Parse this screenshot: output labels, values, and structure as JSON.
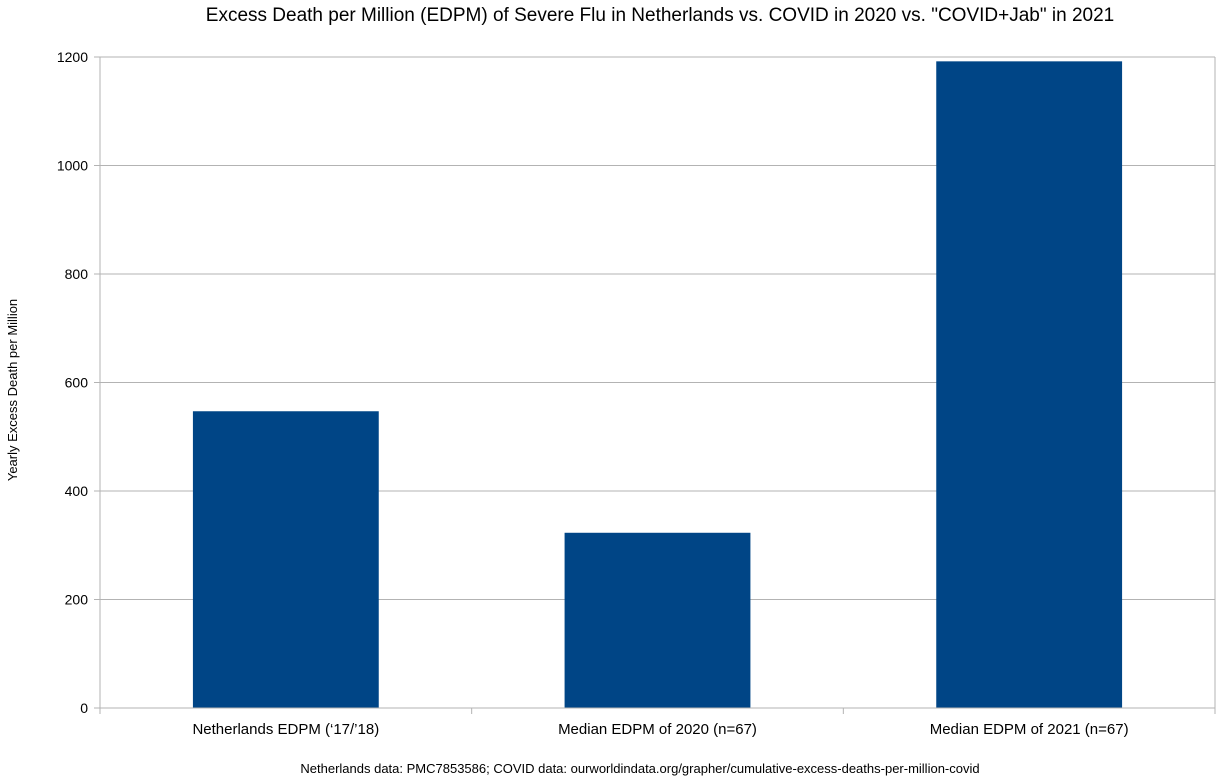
{
  "chart_data": {
    "type": "bar",
    "title": "Excess Death per Million (EDPM) of Severe Flu in Netherlands vs. COVID in 2020 vs. \"COVID+Jab\" in 2021",
    "ylabel": "Yearly Excess Death per Million",
    "xlabel": "",
    "categories": [
      "Netherlands EDPM (‘17/’18)",
      "Median EDPM of 2020 (n=67)",
      "Median EDPM of 2021 (n=67)"
    ],
    "values": [
      547,
      323,
      1192
    ],
    "ylim": [
      0,
      1200
    ],
    "yticks": [
      "0",
      "200",
      "400",
      "600",
      "800",
      "1000",
      "1200"
    ],
    "grid": true,
    "bar_color": "#004586",
    "grid_color": "#b3b3b3",
    "footnote": "Netherlands data: PMC7853586; COVID data: ourworldindata.org/grapher/cumulative-excess-deaths-per-million-covid"
  }
}
